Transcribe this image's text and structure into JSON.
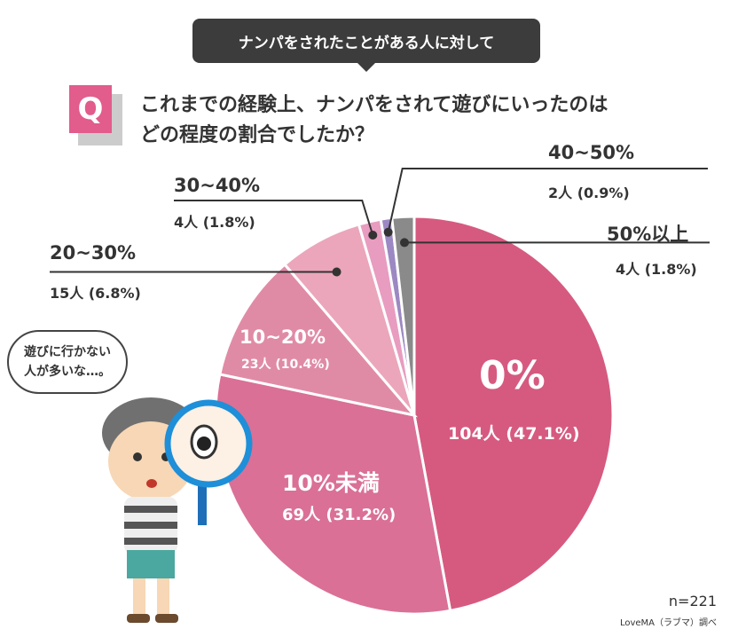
{
  "header": {
    "tag": "ナンパをされたことがある人に対して",
    "q_mark": "Q",
    "question_line1": "これまでの経験上、ナンパをされて遊びにいったのは",
    "question_line2": "どの程度の割合でしたか？"
  },
  "bubble": {
    "line1": "遊びに行かない",
    "line2": "人が多いな…。"
  },
  "footer": {
    "n": "n=221",
    "source": "LoveMA（ラブマ）調べ"
  },
  "chart_data": {
    "type": "pie",
    "start": "12 o'clock",
    "direction": "clockwise",
    "slices": [
      {
        "label": "0%",
        "count": "104人",
        "pct_text": "(47.1%)",
        "value": 47.1,
        "color": "#d65a80"
      },
      {
        "label": "10%未満",
        "count": "69人",
        "pct_text": "(31.2%)",
        "value": 31.2,
        "color": "#da7096"
      },
      {
        "label": "10~20%",
        "count": "23人",
        "pct_text": "(10.4%)",
        "value": 10.4,
        "color": "#e08ba6"
      },
      {
        "label": "20~30%",
        "count": "15人",
        "pct_text": "(6.8%)",
        "value": 6.8,
        "color": "#eba6bb"
      },
      {
        "label": "30~40%",
        "count": "4人",
        "pct_text": "(1.8%)",
        "value": 1.8,
        "color": "#e89cc0"
      },
      {
        "label": "40~50%",
        "count": "2人",
        "pct_text": "(0.9%)",
        "value": 0.9,
        "color": "#9c88c2"
      },
      {
        "label": "50%以上",
        "count": "4人",
        "pct_text": "(1.8%)",
        "value": 1.8,
        "color": "#8a8a8a"
      }
    ]
  }
}
